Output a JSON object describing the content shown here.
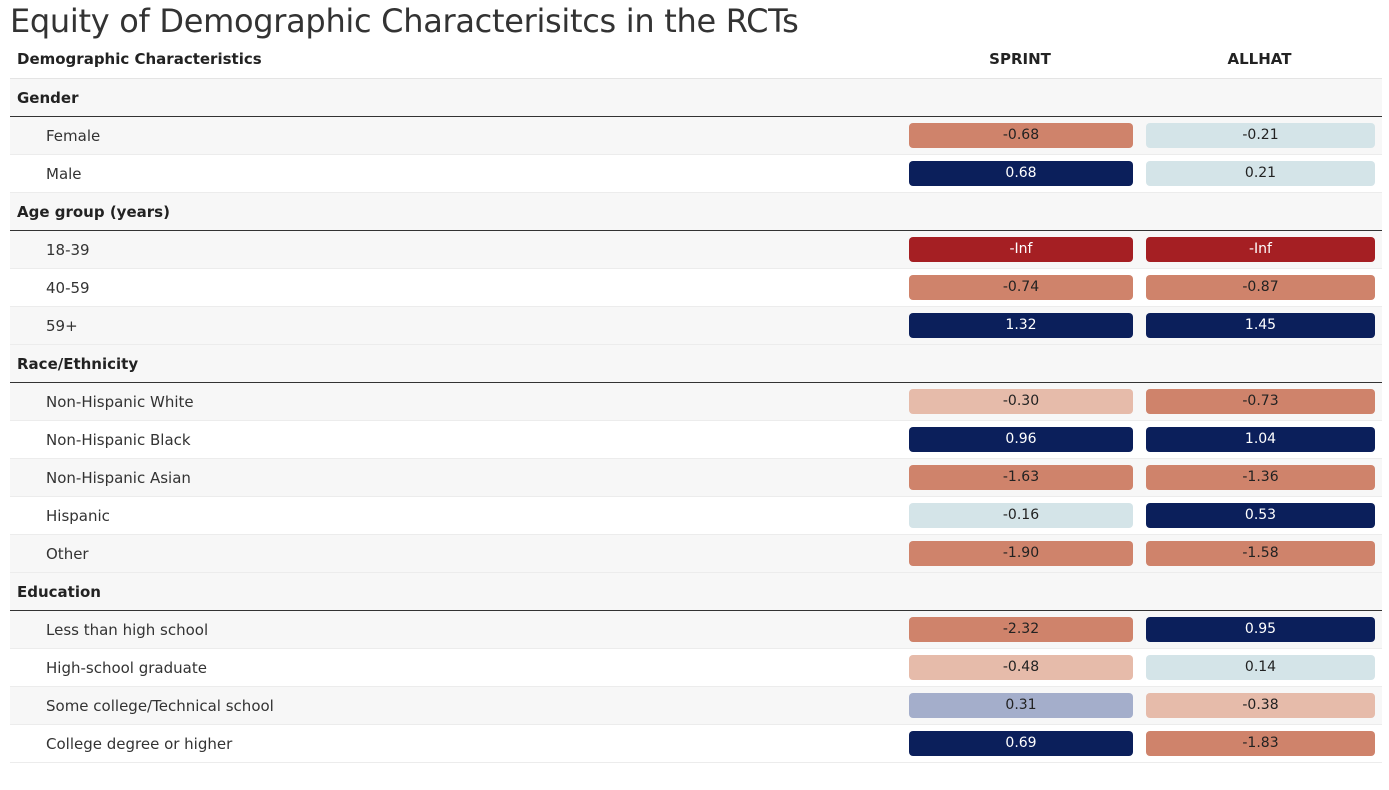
{
  "title": "Equity of Demographic Characterisitcs in the RCTs",
  "chart_data": {
    "type": "table",
    "columns": [
      "Demographic Characteristics",
      "SPRINT",
      "ALLHAT"
    ],
    "groups": [
      {
        "name": "Gender",
        "rows": [
          {
            "label": "Female",
            "values": [
              "-0.68",
              "-0.21"
            ]
          },
          {
            "label": "Male",
            "values": [
              "0.68",
              "0.21"
            ]
          }
        ]
      },
      {
        "name": "Age group (years)",
        "rows": [
          {
            "label": "18-39",
            "values": [
              "-Inf",
              "-Inf"
            ]
          },
          {
            "label": "40-59",
            "values": [
              "-0.74",
              "-0.87"
            ]
          },
          {
            "label": "59+",
            "values": [
              "1.32",
              "1.45"
            ]
          }
        ]
      },
      {
        "name": "Race/Ethnicity",
        "rows": [
          {
            "label": "Non-Hispanic White",
            "values": [
              "-0.30",
              "-0.73"
            ]
          },
          {
            "label": "Non-Hispanic Black",
            "values": [
              "0.96",
              "1.04"
            ]
          },
          {
            "label": "Non-Hispanic Asian",
            "values": [
              "-1.63",
              "-1.36"
            ]
          },
          {
            "label": "Hispanic",
            "values": [
              "-0.16",
              "0.53"
            ]
          },
          {
            "label": "Other",
            "values": [
              "-1.90",
              "-1.58"
            ]
          }
        ]
      },
      {
        "name": "Education",
        "rows": [
          {
            "label": "Less than high school",
            "values": [
              "-2.32",
              "0.95"
            ]
          },
          {
            "label": "High-school graduate",
            "values": [
              "-0.48",
              "0.14"
            ]
          },
          {
            "label": "Some college/Technical school",
            "values": [
              "0.31",
              "-0.38"
            ]
          },
          {
            "label": "College degree or higher",
            "values": [
              "0.69",
              "-1.83"
            ]
          }
        ]
      }
    ],
    "colors": {
      "neg_inf": "#a51f23",
      "neg_strong": "#cf836b",
      "neg_light": "#e6bbaa",
      "neutral": "#d4e4e8",
      "pos_light": "#a4aecb",
      "pos_strong": "#0b1f5b"
    }
  }
}
